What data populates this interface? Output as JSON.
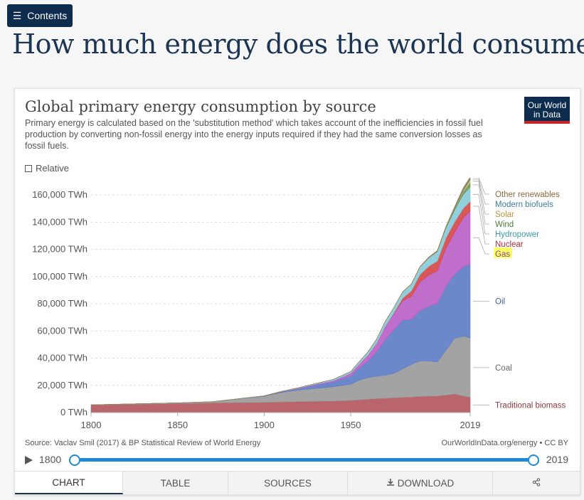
{
  "header": {
    "contents_label": "Contents",
    "page_title": "How much energy does the world consume?"
  },
  "chart_card": {
    "title": "Global primary energy consumption by source",
    "subtitle": "Primary energy is calculated based on the 'substitution method' which takes account of the inefficiencies in fossil fuel production by converting non-fossil energy into the energy inputs required if they had the same conversion losses as fossil fuels.",
    "logo_line1": "Our World",
    "logo_line2": "in Data",
    "relative_label": "Relative",
    "source": "Source: Vaclav Smil (2017) & BP Statistical Review of World Energy",
    "url": "OurWorldInData.org/energy • CC BY",
    "timeline": {
      "start": "1800",
      "end": "2019"
    },
    "tabs": {
      "chart": "CHART",
      "table": "TABLE",
      "sources": "SOURCES",
      "download": "DOWNLOAD"
    }
  },
  "chart_data": {
    "type": "area",
    "stacked": true,
    "x": [
      1800,
      1850,
      1870,
      1900,
      1910,
      1920,
      1930,
      1940,
      1950,
      1955,
      1960,
      1965,
      1970,
      1975,
      1980,
      1985,
      1990,
      1995,
      2000,
      2005,
      2010,
      2015,
      2019
    ],
    "x_ticks": [
      "1800",
      "1850",
      "1900",
      "1950",
      "2019"
    ],
    "y_ticks": [
      "0 TWh",
      "20,000 TWh",
      "40,000 TWh",
      "60,000 TWh",
      "80,000 TWh",
      "100,000 TWh",
      "120,000 TWh",
      "140,000 TWh",
      "160,000 TWh"
    ],
    "ylim": [
      0,
      170000
    ],
    "series": [
      {
        "name": "Traditional biomass",
        "color": "#b2545b",
        "values": [
          5556,
          6611,
          7056,
          7500,
          7750,
          8000,
          8250,
          8500,
          8889,
          9300,
          9800,
          10200,
          10500,
          10900,
          11100,
          11400,
          11900,
          12000,
          12200,
          12800,
          13600,
          12200,
          11100
        ]
      },
      {
        "name": "Coal",
        "color": "#999999",
        "values": [
          100,
          500,
          900,
          4500,
          7000,
          8500,
          9500,
          10500,
          12000,
          14500,
          16000,
          16500,
          17000,
          18000,
          21000,
          24000,
          26000,
          26000,
          25000,
          33000,
          41000,
          44000,
          43800
        ]
      },
      {
        "name": "Oil",
        "color": "#5b7bc5",
        "values": [
          0,
          0,
          0,
          200,
          500,
          1200,
          2500,
          3500,
          6000,
          9000,
          12000,
          18000,
          26000,
          32000,
          36000,
          33000,
          37000,
          40000,
          43000,
          47000,
          47000,
          51000,
          54000
        ]
      },
      {
        "name": "Gas",
        "color": "#b95ec6",
        "values": [
          0,
          0,
          0,
          100,
          200,
          300,
          600,
          1000,
          2100,
          3000,
          4500,
          6500,
          10000,
          12000,
          14000,
          17000,
          21000,
          23000,
          24000,
          28000,
          31000,
          36000,
          39300
        ]
      },
      {
        "name": "Nuclear",
        "color": "#d64545",
        "values": [
          0,
          0,
          0,
          0,
          0,
          0,
          0,
          0,
          0,
          0,
          0,
          0,
          100,
          500,
          2000,
          4000,
          5500,
          6500,
          7200,
          7500,
          7500,
          7000,
          7000
        ]
      },
      {
        "name": "Hydropower",
        "color": "#86cad8",
        "values": [
          0,
          0,
          0,
          0,
          100,
          300,
          600,
          900,
          1200,
          1700,
          2300,
          2900,
          3500,
          4000,
          4600,
          5000,
          5600,
          6200,
          6900,
          7300,
          8700,
          10200,
          10500
        ]
      },
      {
        "name": "Wind",
        "color": "#6a9a55",
        "values": [
          0,
          0,
          0,
          0,
          0,
          0,
          0,
          0,
          0,
          0,
          0,
          0,
          0,
          0,
          0,
          0,
          0,
          0,
          100,
          300,
          900,
          2300,
          3500
        ]
      },
      {
        "name": "Solar",
        "color": "#e8b96c",
        "values": [
          0,
          0,
          0,
          0,
          0,
          0,
          0,
          0,
          0,
          0,
          0,
          0,
          0,
          0,
          0,
          0,
          0,
          0,
          0,
          0,
          100,
          700,
          1800
        ]
      },
      {
        "name": "Modern biofuels",
        "color": "#4f96b0",
        "values": [
          0,
          0,
          0,
          0,
          0,
          0,
          0,
          0,
          0,
          0,
          0,
          0,
          0,
          0,
          0,
          0,
          50,
          150,
          200,
          400,
          700,
          900,
          1100
        ]
      },
      {
        "name": "Other renewables",
        "color": "#a5793f",
        "values": [
          0,
          0,
          0,
          0,
          0,
          0,
          0,
          0,
          0,
          0,
          0,
          0,
          0,
          0,
          100,
          200,
          300,
          400,
          500,
          600,
          800,
          1000,
          1100
        ]
      }
    ],
    "legend_label_colors": {
      "Other renewables": "#8a6a3c",
      "Modern biofuels": "#3a7f9c",
      "Solar": "#c1913c",
      "Wind": "#4c7d3e",
      "Hydropower": "#3f98ac",
      "Nuclear": "#b02d36",
      "Gas": "#8a3f9d",
      "Oil": "#3e5da1",
      "Coal": "#666666",
      "Traditional biomass": "#8f3a42"
    },
    "highlight": "Gas",
    "highlight_color": "#ffff66"
  }
}
